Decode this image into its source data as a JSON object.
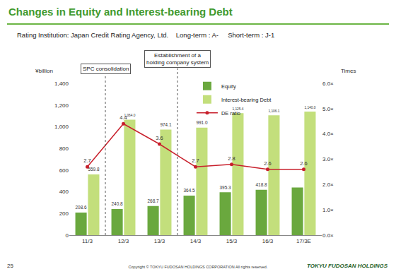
{
  "page": {
    "title": "Changes in Equity and Interest-bearing Debt",
    "subtitle": "Rating Institution: Japan Credit Rating Agency, Ltd.    Long-term : A-     Short-term : J-1",
    "page_number": "25",
    "copyright": "Copyright © TOKYU FUDOSAN HOLDINGS CORPORATION All rights reserved.",
    "logo": "TOKYU FUDOSAN HOLDINGS"
  },
  "chart_data": {
    "type": "bar",
    "y_label": "¥billion",
    "y2_label": "Times",
    "categories": [
      "11/3",
      "12/3",
      "13/3",
      "14/3",
      "15/3",
      "16/3",
      "17/3E"
    ],
    "series": [
      {
        "name": "Equity",
        "type": "bar",
        "color": "#6aa83e",
        "values": [
          208.6,
          240.8,
          268.7,
          364.5,
          395.3,
          418.8,
          440
        ],
        "value_labels": [
          "208.6",
          "240.8",
          "268.7",
          "364.5",
          "395.3",
          "418.8",
          null
        ]
      },
      {
        "name": "Interest-bearing Debt",
        "type": "bar",
        "color": "#c3df7c",
        "values": [
          559.8,
          1064.0,
          974.1,
          991.0,
          1125.4,
          1106.1,
          1140.0
        ],
        "value_labels": [
          "559.8",
          "1,064.0",
          "974.1",
          "991.0",
          "1,125.4",
          "1,106.1",
          "1,140.0"
        ]
      },
      {
        "name": "DE ratio",
        "type": "line",
        "axis": "y2",
        "color": "#c8202c",
        "marker": "circle",
        "line_style": "solid",
        "values": [
          2.7,
          4.4,
          3.6,
          2.7,
          2.8,
          2.6,
          2.6
        ]
      }
    ],
    "ylim": [
      0,
      1400
    ],
    "yticks": [
      0,
      200,
      400,
      600,
      800,
      {
        "value": 1000,
        "label": "1,000"
      },
      {
        "value": 1200,
        "label": "1,200"
      },
      {
        "value": 1400,
        "label": "1,400"
      }
    ],
    "y2lim": [
      0,
      6
    ],
    "y2ticks": [
      {
        "value": 0,
        "label": "0.0×"
      },
      {
        "value": 1,
        "label": "1.0×"
      },
      {
        "value": 2,
        "label": "2.0×"
      },
      {
        "value": 3,
        "label": "3.0×"
      },
      {
        "value": 4,
        "label": "4.0×"
      },
      {
        "value": 5,
        "label": "5.0×"
      },
      {
        "value": 6,
        "label": "6.0×"
      }
    ],
    "annotations": [
      {
        "lines": [
          "SPC consolidation"
        ],
        "between": [
          "11/3",
          "12/3"
        ]
      },
      {
        "lines": [
          "Establishment of a",
          "holding company system"
        ],
        "between": [
          "13/3",
          "14/3"
        ]
      }
    ],
    "data_labels": true,
    "grid": false,
    "legend": "top"
  }
}
